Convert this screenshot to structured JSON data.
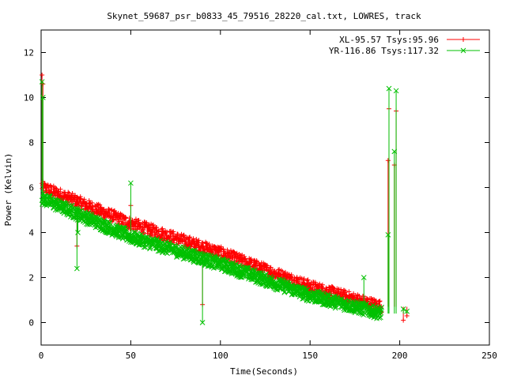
{
  "chart_data": {
    "type": "scatter",
    "title": "Skynet_59687_psr_b0833_45_79516_28220_cal.txt, LOWRES, track",
    "xlabel": "Time(Seconds)",
    "ylabel": "Power (Kelvin)",
    "xlim": [
      0,
      250
    ],
    "ylim": [
      -1,
      13
    ],
    "xticks": [
      0,
      50,
      100,
      150,
      200,
      250
    ],
    "yticks": [
      0,
      2,
      4,
      6,
      8,
      10,
      12
    ],
    "grid": false,
    "legend_position": "top-right",
    "series": [
      {
        "name": "XL-95.57 Tsys:95.96",
        "color": "#ff0000",
        "marker": "plus",
        "trend": [
          {
            "x": 0.5,
            "y": 6.1
          },
          {
            "x": 1,
            "y": 6.0
          },
          {
            "x": 50,
            "y": 4.4
          },
          {
            "x": 100,
            "y": 3.1
          },
          {
            "x": 150,
            "y": 1.6
          },
          {
            "x": 190,
            "y": 0.7
          }
        ],
        "spikes": [
          {
            "x": 0.5,
            "y": 11.0
          },
          {
            "x": 1,
            "y": 10.6
          },
          {
            "x": 20,
            "y": 3.4
          },
          {
            "x": 50,
            "y": 5.2
          },
          {
            "x": 90,
            "y": 0.8
          },
          {
            "x": 193.5,
            "y": 7.2
          },
          {
            "x": 194,
            "y": 9.5
          },
          {
            "x": 198,
            "y": 9.4
          },
          {
            "x": 197,
            "y": 7.0
          },
          {
            "x": 202,
            "y": 0.1
          },
          {
            "x": 204,
            "y": 0.3
          }
        ]
      },
      {
        "name": "YR-116.86 Tsys:117.32",
        "color": "#00c000",
        "marker": "x",
        "trend": [
          {
            "x": 0.5,
            "y": 5.5
          },
          {
            "x": 1,
            "y": 5.5
          },
          {
            "x": 50,
            "y": 3.8
          },
          {
            "x": 100,
            "y": 2.6
          },
          {
            "x": 150,
            "y": 1.2
          },
          {
            "x": 190,
            "y": 0.4
          }
        ],
        "spikes": [
          {
            "x": 0.5,
            "y": 10.7
          },
          {
            "x": 1,
            "y": 10.0
          },
          {
            "x": 20,
            "y": 2.4
          },
          {
            "x": 20.5,
            "y": 4.0
          },
          {
            "x": 50,
            "y": 6.2
          },
          {
            "x": 90,
            "y": 0.0
          },
          {
            "x": 180,
            "y": 2.0
          },
          {
            "x": 193.5,
            "y": 3.9
          },
          {
            "x": 194,
            "y": 10.4
          },
          {
            "x": 198,
            "y": 10.3
          },
          {
            "x": 197,
            "y": 7.6
          },
          {
            "x": 202,
            "y": 0.6
          },
          {
            "x": 204,
            "y": 0.5
          }
        ]
      }
    ]
  }
}
